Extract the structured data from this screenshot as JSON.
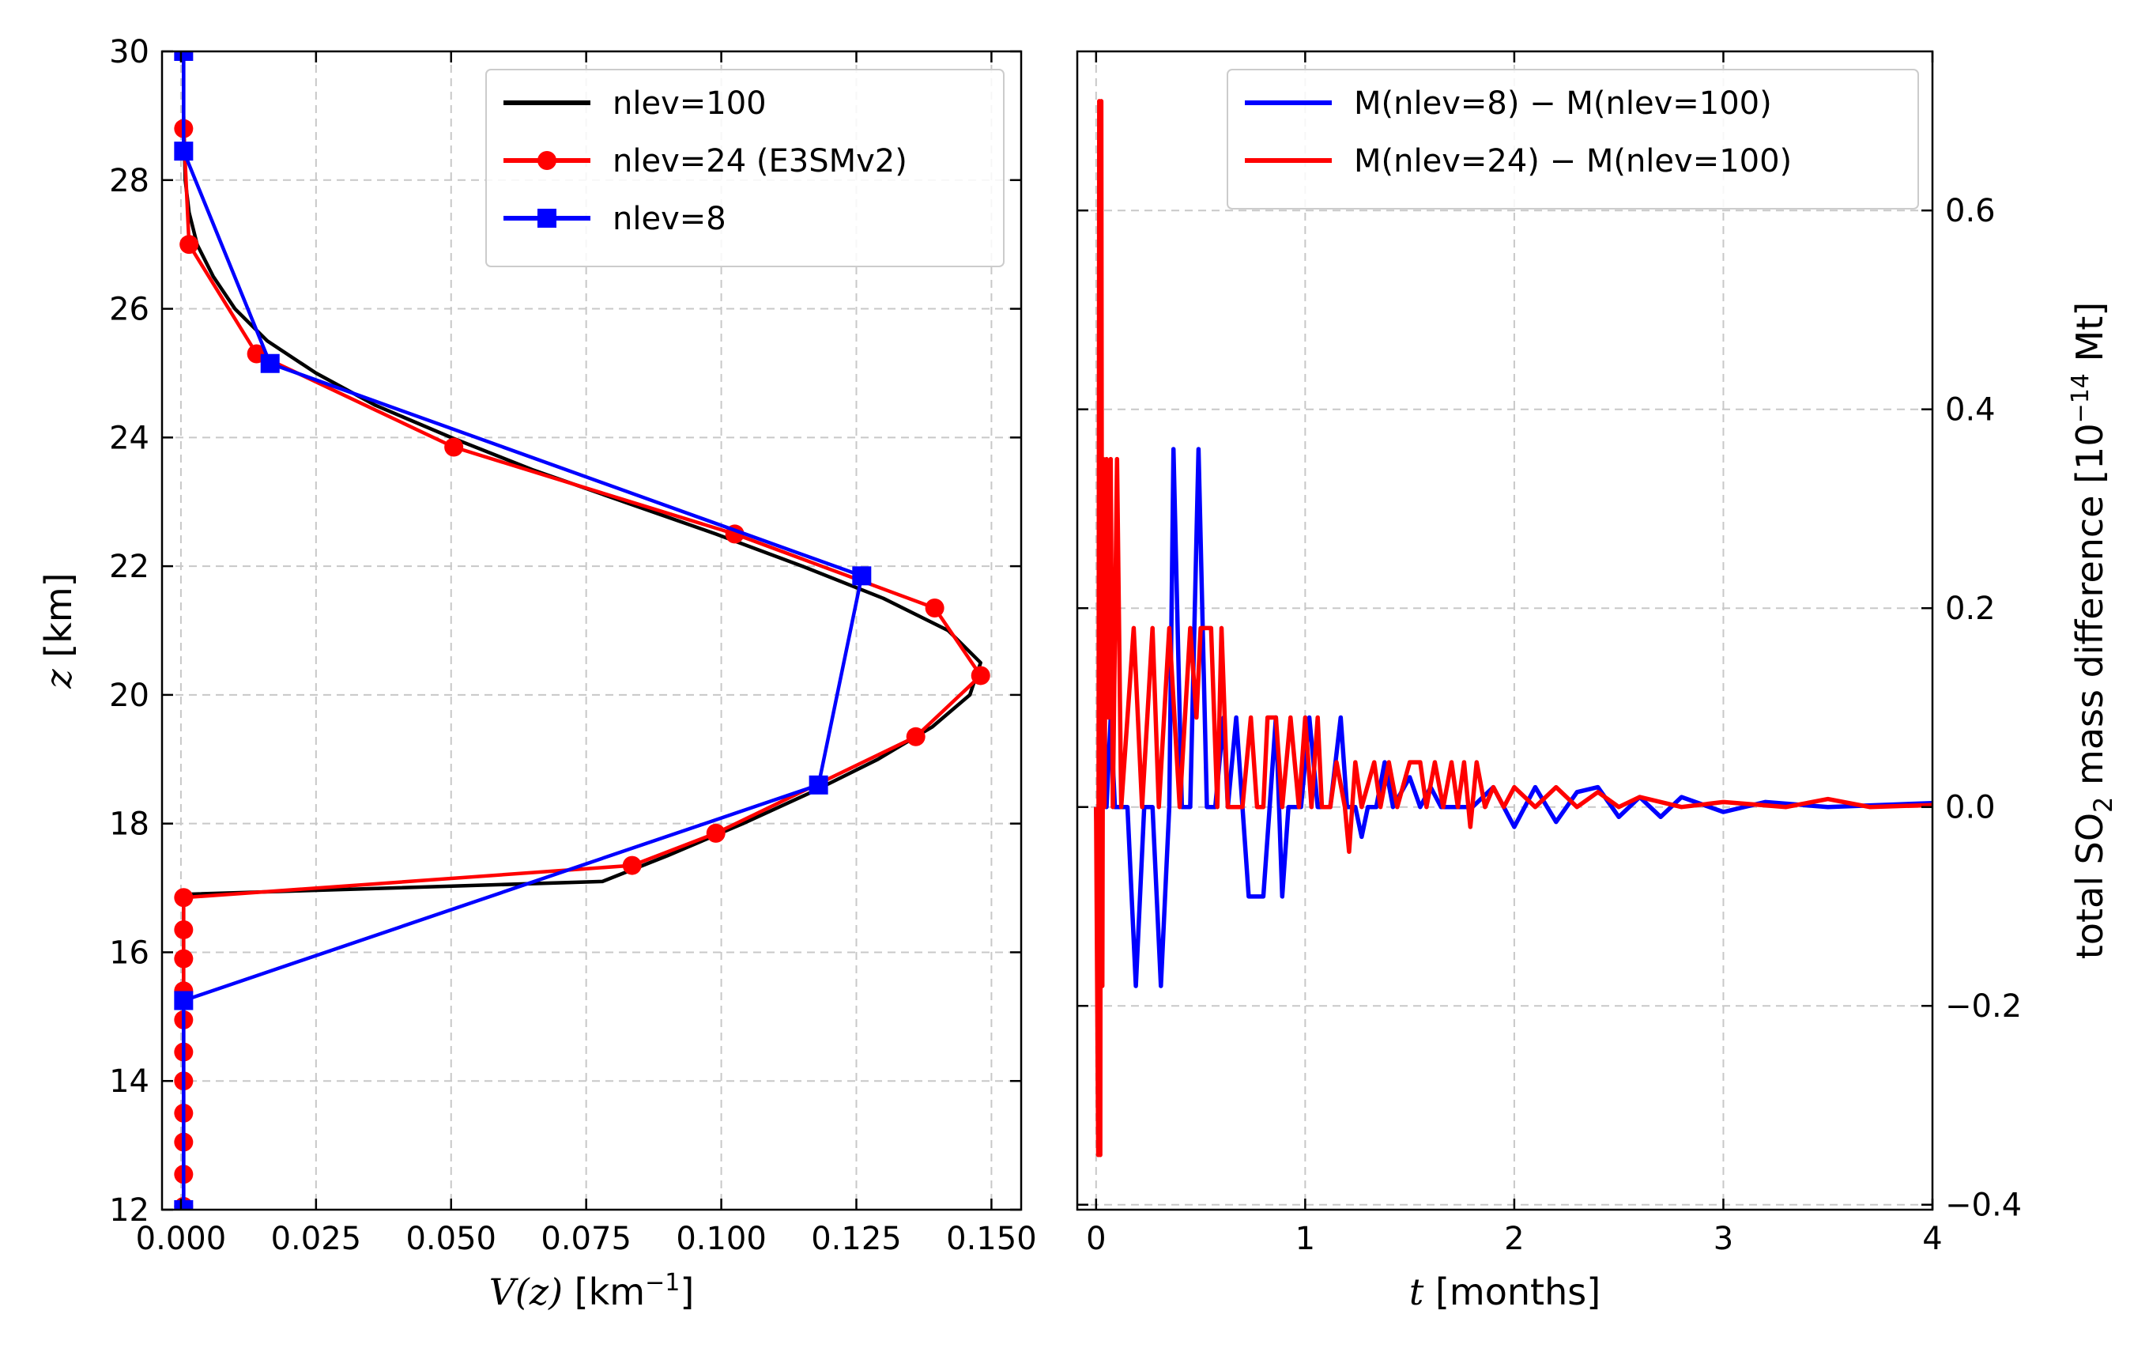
{
  "colors": {
    "black": "#000000",
    "red": "#ff0000",
    "blue": "#0000ff"
  },
  "chart_data": [
    {
      "type": "line",
      "xlabel_italic": "V(z)",
      "xlabel_unit": "[km",
      "xlabel_unit_sup": "−1",
      "xlabel_unit_end": "]",
      "ylabel_italic": "z",
      "ylabel_unit": "[km]",
      "xlim": [
        -0.0035,
        0.1555
      ],
      "ylim": [
        12,
        30
      ],
      "xticks": [
        0.0,
        0.025,
        0.05,
        0.075,
        0.1,
        0.125,
        0.15
      ],
      "xtick_labels": [
        "0.000",
        "0.025",
        "0.050",
        "0.075",
        "0.100",
        "0.125",
        "0.150"
      ],
      "yticks": [
        12,
        14,
        16,
        18,
        20,
        22,
        24,
        26,
        28,
        30
      ],
      "ytick_labels": [
        "12",
        "14",
        "16",
        "18",
        "20",
        "22",
        "24",
        "26",
        "28",
        "30"
      ],
      "grid": true,
      "legend_position": "top-right",
      "series": [
        {
          "name": "nlev=100",
          "color": "black",
          "marker": "none",
          "points": [
            [
              0.0005,
              30
            ],
            [
              0.0005,
              29
            ],
            [
              0.0008,
              28
            ],
            [
              0.0015,
              27.5
            ],
            [
              0.003,
              27
            ],
            [
              0.006,
              26.5
            ],
            [
              0.01,
              26
            ],
            [
              0.016,
              25.5
            ],
            [
              0.025,
              25
            ],
            [
              0.036,
              24.5
            ],
            [
              0.05,
              24
            ],
            [
              0.065,
              23.5
            ],
            [
              0.082,
              23
            ],
            [
              0.099,
              22.5
            ],
            [
              0.115,
              22
            ],
            [
              0.13,
              21.5
            ],
            [
              0.142,
              21
            ],
            [
              0.148,
              20.5
            ],
            [
              0.146,
              20
            ],
            [
              0.139,
              19.5
            ],
            [
              0.129,
              19
            ],
            [
              0.117,
              18.5
            ],
            [
              0.104,
              18
            ],
            [
              0.09,
              17.5
            ],
            [
              0.078,
              17.1
            ],
            [
              0.0005,
              16.9
            ],
            [
              0.0005,
              16
            ],
            [
              0.0005,
              12
            ]
          ]
        },
        {
          "name": "nlev=24 (E3SMv2)",
          "color": "red",
          "marker": "circle",
          "points": [
            [
              0.0005,
              28.8
            ],
            [
              0.0015,
              27
            ],
            [
              0.014,
              25.3
            ],
            [
              0.0505,
              23.85
            ],
            [
              0.1025,
              22.5
            ],
            [
              0.1395,
              21.35
            ],
            [
              0.148,
              20.3
            ],
            [
              0.136,
              19.35
            ],
            [
              0.099,
              17.85
            ],
            [
              0.0835,
              17.35
            ],
            [
              0.0005,
              16.85
            ],
            [
              0.0005,
              16.35
            ],
            [
              0.0005,
              15.9
            ],
            [
              0.0005,
              15.4
            ],
            [
              0.0005,
              14.95
            ],
            [
              0.0005,
              14.45
            ],
            [
              0.0005,
              14.0
            ],
            [
              0.0005,
              13.5
            ],
            [
              0.0005,
              13.05
            ],
            [
              0.0005,
              12.55
            ],
            [
              0.0005,
              12.05
            ]
          ]
        },
        {
          "name": "nlev=8",
          "color": "blue",
          "marker": "square",
          "points": [
            [
              0.0005,
              30
            ],
            [
              0.0005,
              28.45
            ],
            [
              0.0165,
              25.15
            ],
            [
              0.126,
              21.85
            ],
            [
              0.118,
              18.6
            ],
            [
              0.0005,
              15.25
            ],
            [
              0.0005,
              12.0
            ]
          ]
        }
      ]
    },
    {
      "type": "line",
      "xlabel_italic": "t",
      "xlabel_unit": "[months]",
      "ylabel_prefix": "total SO",
      "ylabel_sub": "2",
      "ylabel_mid": " mass difference [10",
      "ylabel_sup": "−14",
      "ylabel_end": " Mt]",
      "xlim": [
        -0.09,
        4.0
      ],
      "ylim": [
        -0.405,
        0.76
      ],
      "xticks": [
        0,
        1,
        2,
        3,
        4
      ],
      "xtick_labels": [
        "0",
        "1",
        "2",
        "3",
        "4"
      ],
      "yticks": [
        -0.4,
        -0.2,
        0.0,
        0.2,
        0.4,
        0.6
      ],
      "ytick_labels": [
        "−0.4",
        "−0.2",
        "0.0",
        "0.2",
        "0.4",
        "0.6"
      ],
      "y_axis_side": "right",
      "grid": true,
      "legend_position": "top-right",
      "series": [
        {
          "name": "M(nlev=8) − M(nlev=100)",
          "color": "blue",
          "points": [
            [
              0.0,
              0
            ],
            [
              0.01,
              -0.09
            ],
            [
              0.02,
              0
            ],
            [
              0.03,
              0.18
            ],
            [
              0.05,
              0
            ],
            [
              0.07,
              0.09
            ],
            [
              0.09,
              0
            ],
            [
              0.15,
              0
            ],
            [
              0.19,
              -0.18
            ],
            [
              0.23,
              0
            ],
            [
              0.27,
              0
            ],
            [
              0.31,
              -0.18
            ],
            [
              0.35,
              0
            ],
            [
              0.37,
              0.36
            ],
            [
              0.41,
              0
            ],
            [
              0.45,
              0
            ],
            [
              0.49,
              0.36
            ],
            [
              0.53,
              0
            ],
            [
              0.57,
              0
            ],
            [
              0.61,
              0.09
            ],
            [
              0.63,
              0
            ],
            [
              0.67,
              0.09
            ],
            [
              0.7,
              0
            ],
            [
              0.73,
              -0.09
            ],
            [
              0.8,
              -0.09
            ],
            [
              0.83,
              0
            ],
            [
              0.86,
              0.09
            ],
            [
              0.89,
              -0.09
            ],
            [
              0.92,
              0
            ],
            [
              0.98,
              0
            ],
            [
              1.02,
              0.09
            ],
            [
              1.06,
              0
            ],
            [
              1.12,
              0
            ],
            [
              1.17,
              0.09
            ],
            [
              1.2,
              0
            ],
            [
              1.24,
              0
            ],
            [
              1.27,
              -0.03
            ],
            [
              1.3,
              0
            ],
            [
              1.34,
              0
            ],
            [
              1.38,
              0.045
            ],
            [
              1.42,
              0
            ],
            [
              1.5,
              0.03
            ],
            [
              1.55,
              0
            ],
            [
              1.6,
              0.02
            ],
            [
              1.65,
              0
            ],
            [
              1.8,
              0
            ],
            [
              1.9,
              0.02
            ],
            [
              2.0,
              -0.02
            ],
            [
              2.1,
              0.02
            ],
            [
              2.2,
              -0.015
            ],
            [
              2.3,
              0.015
            ],
            [
              2.4,
              0.02
            ],
            [
              2.5,
              -0.01
            ],
            [
              2.6,
              0.01
            ],
            [
              2.7,
              -0.01
            ],
            [
              2.8,
              0.01
            ],
            [
              3.0,
              -0.005
            ],
            [
              3.2,
              0.005
            ],
            [
              3.5,
              0
            ],
            [
              4.0,
              0.004
            ]
          ]
        },
        {
          "name": "M(nlev=24) − M(nlev=100)",
          "color": "red",
          "points": [
            [
              0.0,
              0
            ],
            [
              0.01,
              -0.35
            ],
            [
              0.015,
              0.71
            ],
            [
              0.02,
              -0.35
            ],
            [
              0.025,
              0.71
            ],
            [
              0.03,
              -0.18
            ],
            [
              0.035,
              0.35
            ],
            [
              0.04,
              0
            ],
            [
              0.05,
              0.35
            ],
            [
              0.06,
              0.09
            ],
            [
              0.07,
              0.35
            ],
            [
              0.08,
              0
            ],
            [
              0.1,
              0.35
            ],
            [
              0.12,
              0
            ],
            [
              0.18,
              0.18
            ],
            [
              0.22,
              0
            ],
            [
              0.27,
              0.18
            ],
            [
              0.3,
              0
            ],
            [
              0.35,
              0.18
            ],
            [
              0.4,
              0
            ],
            [
              0.45,
              0.18
            ],
            [
              0.48,
              0.09
            ],
            [
              0.5,
              0.18
            ],
            [
              0.55,
              0.18
            ],
            [
              0.58,
              0
            ],
            [
              0.6,
              0.18
            ],
            [
              0.63,
              0
            ],
            [
              0.7,
              0
            ],
            [
              0.74,
              0.09
            ],
            [
              0.77,
              0
            ],
            [
              0.8,
              0
            ],
            [
              0.82,
              0.09
            ],
            [
              0.86,
              0.09
            ],
            [
              0.89,
              0
            ],
            [
              0.93,
              0.09
            ],
            [
              0.97,
              0
            ],
            [
              1.0,
              0.09
            ],
            [
              1.03,
              0
            ],
            [
              1.06,
              0.09
            ],
            [
              1.08,
              0
            ],
            [
              1.12,
              0
            ],
            [
              1.15,
              0.045
            ],
            [
              1.19,
              0
            ],
            [
              1.21,
              -0.045
            ],
            [
              1.24,
              0.045
            ],
            [
              1.27,
              0
            ],
            [
              1.33,
              0.045
            ],
            [
              1.36,
              0
            ],
            [
              1.4,
              0.045
            ],
            [
              1.44,
              0
            ],
            [
              1.5,
              0.045
            ],
            [
              1.55,
              0.045
            ],
            [
              1.58,
              0
            ],
            [
              1.62,
              0.045
            ],
            [
              1.66,
              0
            ],
            [
              1.7,
              0.045
            ],
            [
              1.73,
              0
            ],
            [
              1.76,
              0.045
            ],
            [
              1.79,
              -0.02
            ],
            [
              1.82,
              0.045
            ],
            [
              1.86,
              0
            ],
            [
              1.9,
              0.02
            ],
            [
              1.95,
              0
            ],
            [
              2.0,
              0.02
            ],
            [
              2.1,
              0
            ],
            [
              2.2,
              0.02
            ],
            [
              2.3,
              0
            ],
            [
              2.4,
              0.015
            ],
            [
              2.5,
              0
            ],
            [
              2.6,
              0.01
            ],
            [
              2.8,
              0
            ],
            [
              3.0,
              0.005
            ],
            [
              3.3,
              0
            ],
            [
              3.5,
              0.008
            ],
            [
              3.7,
              0
            ],
            [
              4.0,
              0.002
            ]
          ]
        }
      ]
    }
  ]
}
